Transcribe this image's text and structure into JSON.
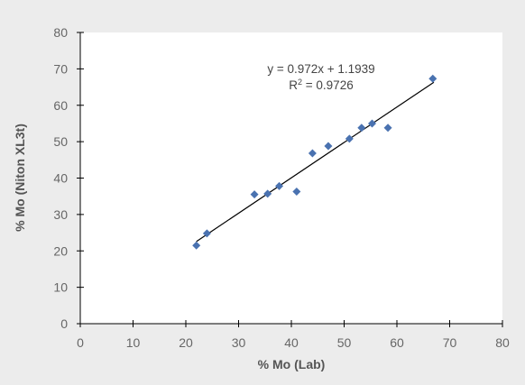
{
  "chart_data": {
    "type": "scatter",
    "xlabel": "% Mo (Lab)",
    "ylabel": "% Mo (Niton XL3t)",
    "xlim": [
      0,
      80
    ],
    "ylim": [
      0,
      80
    ],
    "x_ticks": [
      0,
      10,
      20,
      30,
      40,
      50,
      60,
      70,
      80
    ],
    "y_ticks": [
      0,
      10,
      20,
      30,
      40,
      50,
      60,
      70,
      80
    ],
    "grid": false,
    "series": [
      {
        "color": "#4a72b0",
        "marker": "diamond",
        "points": [
          {
            "x": 22.0,
            "y": 21.5
          },
          {
            "x": 24.0,
            "y": 24.8
          },
          {
            "x": 33.0,
            "y": 35.5
          },
          {
            "x": 35.5,
            "y": 35.7
          },
          {
            "x": 37.7,
            "y": 37.8
          },
          {
            "x": 41.0,
            "y": 36.3
          },
          {
            "x": 44.0,
            "y": 46.8
          },
          {
            "x": 47.0,
            "y": 48.8
          },
          {
            "x": 51.0,
            "y": 50.8
          },
          {
            "x": 53.3,
            "y": 53.8
          },
          {
            "x": 55.3,
            "y": 55.0
          },
          {
            "x": 58.3,
            "y": 53.8
          },
          {
            "x": 66.8,
            "y": 67.3
          }
        ]
      }
    ],
    "trendline": {
      "slope": 0.972,
      "intercept": 1.1939,
      "x_range": [
        22,
        67
      ],
      "color": "#000000"
    },
    "annotations": {
      "equation": "y = 0.972x + 1.1939",
      "r2_label": "R",
      "r2_sup": "2",
      "r2_value": " = 0.9726"
    }
  }
}
